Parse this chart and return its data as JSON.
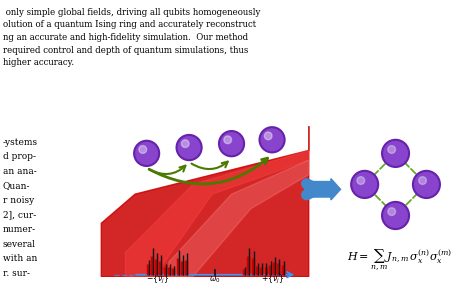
{
  "bg_color": "#ffffff",
  "text_lines_top": [
    " only simple global fields, driving all qubits homogeneously",
    "olution of a quantum Ising ring and accurately reconstruct",
    "ng an accurate and high-fidelity simulation.  Our method",
    "required control and depth of quantum simulations, thus",
    "higher accuracy."
  ],
  "text_lines_left": [
    "-ystems",
    "d prop-",
    "an ana-",
    "Quan-",
    "r noisy",
    "2], cur-",
    "numer-",
    "several",
    "with an",
    "r. sur-"
  ],
  "ion_colors": "#8844cc",
  "ion_edge_color": "#6622aa",
  "arrow_color": "#4a7a00",
  "red_beam_color": "#cc0000",
  "bar_color_red": "#cc0000",
  "bar_color_black": "#111111",
  "axis_color": "#3399ff",
  "axis_label_neg": "-{v_j}",
  "axis_label_zero": "ω_0",
  "axis_label_pos": "+{v_j}",
  "arrow_blue_color": "#4488cc",
  "ring_node_color": "#8844cc",
  "ring_edge_color": "#6622aa",
  "ring_arrow_color": "#66aa22",
  "formula_text": "H = \\sum_{n,m} J_{n,m} \\sigma_x^{(n)} \\sigma_x^{(m)}"
}
